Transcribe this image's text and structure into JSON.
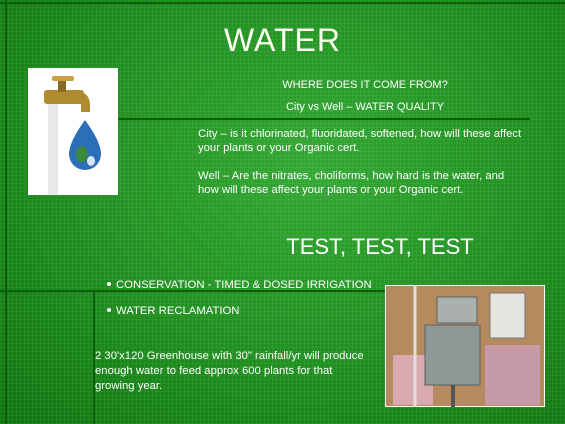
{
  "slide": {
    "title": "WATER",
    "heading": "WHERE DOES IT COME FROM?",
    "subheading": "City vs Well – WATER QUALITY",
    "paragraphs": [
      "City – is it chlorinated, fluoridated, softened, how will these affect your plants or your Organic cert.",
      "Well – Are the nitrates, choliforms, how hard is the water, and how will these affect your plants or your Organic cert."
    ],
    "callout": "TEST, TEST, TEST",
    "bullets": [
      "CONSERVATION - TIMED & DOSED IRRIGATION",
      "WATER RECLAMATION"
    ],
    "note": "2 30'x120 Greenhouse with 30\" rainfall/yr will produce enough water to feed approx 600 plants for that growing year."
  }
}
